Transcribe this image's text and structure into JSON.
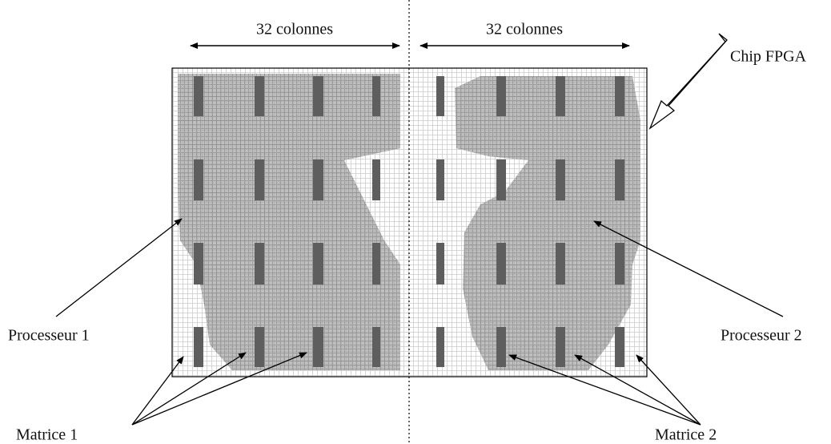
{
  "header": {
    "columns_left": "32 colonnes",
    "columns_right": "32 colonnes"
  },
  "labels": {
    "chip": "Chip FPGA",
    "processor_1": "Processeur 1",
    "processor_2": "Processeur 2",
    "matrix_1": "Matrice 1",
    "matrix_2": "Matrice 2"
  }
}
